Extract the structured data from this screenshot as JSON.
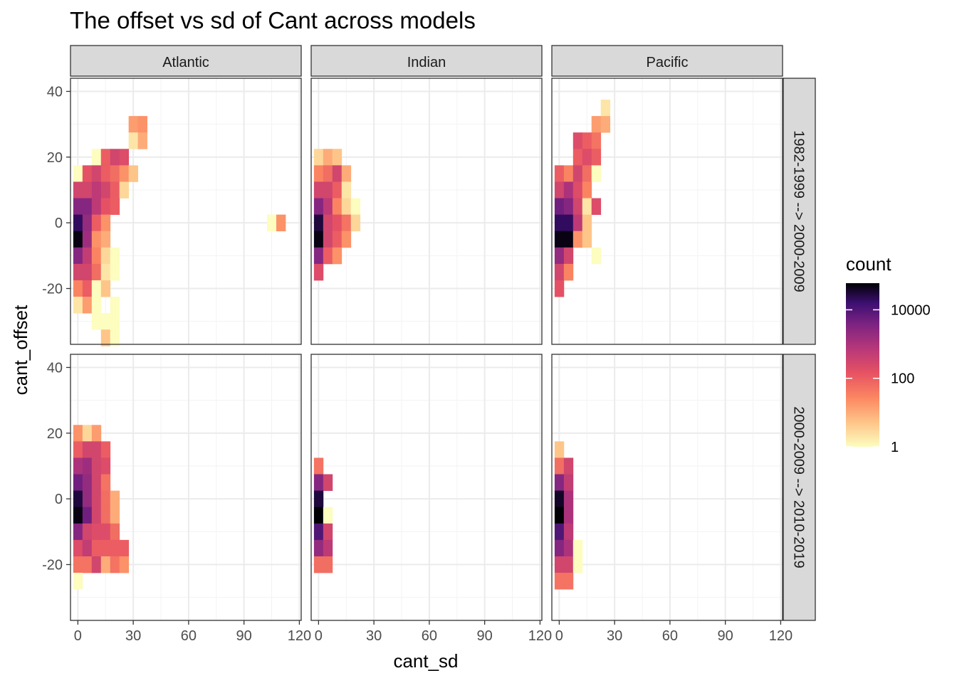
{
  "chart_data": {
    "type": "heatmap",
    "title": "The offset vs sd of Cant across models",
    "xlabel": "cant_sd",
    "ylabel": "cant_offset",
    "xlim": [
      -4,
      121
    ],
    "ylim": [
      -37,
      44
    ],
    "x_ticks": [
      0,
      30,
      60,
      90,
      120
    ],
    "y_ticks": [
      -20,
      0,
      20,
      40
    ],
    "bin_width_x": 5,
    "bin_height_y": 5,
    "grid": true,
    "legend": {
      "title": "count",
      "position": "right",
      "scale": "log10",
      "ticks": [
        1,
        100,
        10000
      ],
      "tick_labels": [
        "1",
        "100",
        "10000"
      ],
      "max": 60000
    },
    "facet_cols": [
      "Atlantic",
      "Indian",
      "Pacific"
    ],
    "facet_rows": [
      "1982-1999 --> 2000-2009",
      "2000-2009 --> 2010-2019"
    ],
    "panels": [
      {
        "basin": "Atlantic",
        "period": "1982-1999 --> 2000-2009",
        "cells": [
          [
            30,
            30,
            15
          ],
          [
            35,
            30,
            20
          ],
          [
            30,
            25,
            2
          ],
          [
            35,
            25,
            10
          ],
          [
            10,
            20,
            1
          ],
          [
            15,
            20,
            100
          ],
          [
            20,
            20,
            300
          ],
          [
            25,
            20,
            200
          ],
          [
            0,
            15,
            1
          ],
          [
            5,
            15,
            150
          ],
          [
            10,
            15,
            300
          ],
          [
            15,
            15,
            100
          ],
          [
            20,
            15,
            60
          ],
          [
            25,
            15,
            20
          ],
          [
            30,
            15,
            5
          ],
          [
            0,
            10,
            300
          ],
          [
            5,
            10,
            300
          ],
          [
            10,
            10,
            600
          ],
          [
            15,
            10,
            300
          ],
          [
            20,
            10,
            100
          ],
          [
            25,
            10,
            3
          ],
          [
            0,
            5,
            3000
          ],
          [
            5,
            5,
            3000
          ],
          [
            10,
            5,
            600
          ],
          [
            15,
            5,
            150
          ],
          [
            20,
            5,
            100
          ],
          [
            0,
            0,
            20000
          ],
          [
            5,
            0,
            2000
          ],
          [
            10,
            0,
            100
          ],
          [
            15,
            0,
            20
          ],
          [
            0,
            -5,
            50000
          ],
          [
            5,
            -5,
            1500
          ],
          [
            10,
            -5,
            20
          ],
          [
            15,
            -5,
            10
          ],
          [
            0,
            -10,
            3000
          ],
          [
            5,
            -10,
            500
          ],
          [
            10,
            -10,
            30
          ],
          [
            15,
            -10,
            3
          ],
          [
            20,
            -10,
            1
          ],
          [
            0,
            -15,
            300
          ],
          [
            5,
            -15,
            300
          ],
          [
            10,
            -15,
            60
          ],
          [
            15,
            -15,
            2
          ],
          [
            20,
            -15,
            1
          ],
          [
            0,
            -20,
            30
          ],
          [
            5,
            -20,
            100
          ],
          [
            10,
            -20,
            1
          ],
          [
            15,
            -20,
            5
          ],
          [
            0,
            -25,
            2
          ],
          [
            5,
            -25,
            15
          ],
          [
            10,
            -25,
            1
          ],
          [
            20,
            -25,
            1
          ],
          [
            10,
            -30,
            1
          ],
          [
            15,
            -30,
            1
          ],
          [
            20,
            -30,
            1
          ],
          [
            15,
            -35,
            5
          ],
          [
            20,
            -35,
            1
          ],
          [
            105,
            0,
            1
          ],
          [
            110,
            0,
            20
          ]
        ]
      },
      {
        "basin": "Indian",
        "period": "1982-1999 --> 2000-2009",
        "cells": [
          [
            0,
            20,
            3
          ],
          [
            5,
            20,
            10
          ],
          [
            10,
            20,
            5
          ],
          [
            0,
            15,
            30
          ],
          [
            5,
            15,
            60
          ],
          [
            10,
            15,
            300
          ],
          [
            15,
            15,
            10
          ],
          [
            0,
            10,
            300
          ],
          [
            5,
            10,
            300
          ],
          [
            10,
            10,
            100
          ],
          [
            15,
            10,
            2
          ],
          [
            0,
            5,
            3000
          ],
          [
            5,
            5,
            600
          ],
          [
            10,
            5,
            30
          ],
          [
            15,
            5,
            3
          ],
          [
            20,
            5,
            1
          ],
          [
            0,
            0,
            30000
          ],
          [
            5,
            0,
            300
          ],
          [
            10,
            0,
            150
          ],
          [
            15,
            0,
            50
          ],
          [
            20,
            0,
            3
          ],
          [
            0,
            -5,
            50000
          ],
          [
            5,
            -5,
            300
          ],
          [
            10,
            -5,
            100
          ],
          [
            15,
            -5,
            20
          ],
          [
            0,
            -10,
            3000
          ],
          [
            5,
            -10,
            100
          ],
          [
            10,
            -10,
            20
          ],
          [
            0,
            -15,
            200
          ]
        ]
      },
      {
        "basin": "Pacific",
        "period": "1982-1999 --> 2000-2009",
        "cells": [
          [
            25,
            35,
            2
          ],
          [
            20,
            30,
            15
          ],
          [
            25,
            30,
            10
          ],
          [
            10,
            25,
            200
          ],
          [
            15,
            25,
            100
          ],
          [
            20,
            25,
            50
          ],
          [
            10,
            20,
            100
          ],
          [
            15,
            20,
            200
          ],
          [
            20,
            20,
            100
          ],
          [
            0,
            15,
            100
          ],
          [
            5,
            15,
            30
          ],
          [
            10,
            15,
            300
          ],
          [
            15,
            15,
            60
          ],
          [
            20,
            15,
            1
          ],
          [
            0,
            10,
            300
          ],
          [
            5,
            10,
            1000
          ],
          [
            10,
            10,
            200
          ],
          [
            15,
            10,
            30
          ],
          [
            0,
            5,
            5000
          ],
          [
            5,
            5,
            3000
          ],
          [
            10,
            5,
            300
          ],
          [
            15,
            5,
            2
          ],
          [
            20,
            5,
            200
          ],
          [
            0,
            0,
            20000
          ],
          [
            5,
            0,
            20000
          ],
          [
            10,
            0,
            600
          ],
          [
            15,
            0,
            5
          ],
          [
            0,
            -5,
            50000
          ],
          [
            5,
            -5,
            50000
          ],
          [
            10,
            -5,
            20
          ],
          [
            15,
            -5,
            5
          ],
          [
            0,
            -10,
            2000
          ],
          [
            5,
            -10,
            300
          ],
          [
            20,
            -10,
            1
          ],
          [
            0,
            -15,
            300
          ],
          [
            5,
            -15,
            30
          ],
          [
            0,
            -20,
            150
          ]
        ]
      },
      {
        "basin": "Atlantic",
        "period": "2000-2009 --> 2010-2019",
        "cells": [
          [
            0,
            20,
            20
          ],
          [
            5,
            20,
            3
          ],
          [
            10,
            20,
            15
          ],
          [
            0,
            15,
            100
          ],
          [
            5,
            15,
            300
          ],
          [
            10,
            15,
            300
          ],
          [
            15,
            15,
            100
          ],
          [
            0,
            10,
            1000
          ],
          [
            5,
            10,
            1500
          ],
          [
            10,
            10,
            300
          ],
          [
            15,
            10,
            200
          ],
          [
            0,
            5,
            5000
          ],
          [
            5,
            5,
            2000
          ],
          [
            10,
            5,
            300
          ],
          [
            15,
            5,
            50
          ],
          [
            0,
            0,
            30000
          ],
          [
            5,
            0,
            2000
          ],
          [
            10,
            0,
            300
          ],
          [
            15,
            0,
            60
          ],
          [
            20,
            0,
            10
          ],
          [
            0,
            -5,
            50000
          ],
          [
            5,
            -5,
            5000
          ],
          [
            10,
            -5,
            300
          ],
          [
            15,
            -5,
            60
          ],
          [
            20,
            -5,
            10
          ],
          [
            0,
            -10,
            3000
          ],
          [
            5,
            -10,
            300
          ],
          [
            10,
            -10,
            200
          ],
          [
            15,
            -10,
            200
          ],
          [
            20,
            -10,
            60
          ],
          [
            0,
            -15,
            200
          ],
          [
            5,
            -15,
            500
          ],
          [
            10,
            -15,
            100
          ],
          [
            15,
            -15,
            100
          ],
          [
            20,
            -15,
            100
          ],
          [
            25,
            -15,
            100
          ],
          [
            0,
            -20,
            50
          ],
          [
            5,
            -20,
            50
          ],
          [
            10,
            -20,
            300
          ],
          [
            15,
            -20,
            10
          ],
          [
            20,
            -20,
            50
          ],
          [
            25,
            -20,
            20
          ],
          [
            0,
            -25,
            1
          ]
        ]
      },
      {
        "basin": "Indian",
        "period": "2000-2009 --> 2010-2019",
        "cells": [
          [
            0,
            10,
            50
          ],
          [
            0,
            5,
            3000
          ],
          [
            5,
            5,
            300
          ],
          [
            0,
            0,
            30000
          ],
          [
            0,
            -5,
            60000
          ],
          [
            5,
            -5,
            1
          ],
          [
            0,
            -10,
            10000
          ],
          [
            5,
            -10,
            300
          ],
          [
            0,
            -15,
            2000
          ],
          [
            5,
            -15,
            600
          ],
          [
            0,
            -20,
            60
          ],
          [
            5,
            -20,
            60
          ]
        ]
      },
      {
        "basin": "Pacific",
        "period": "2000-2009 --> 2010-2019",
        "cells": [
          [
            0,
            15,
            5
          ],
          [
            0,
            10,
            60
          ],
          [
            5,
            10,
            300
          ],
          [
            0,
            5,
            3000
          ],
          [
            5,
            5,
            500
          ],
          [
            0,
            0,
            40000
          ],
          [
            5,
            0,
            1000
          ],
          [
            0,
            -5,
            60000
          ],
          [
            5,
            -5,
            1000
          ],
          [
            0,
            -10,
            10000
          ],
          [
            5,
            -10,
            600
          ],
          [
            0,
            -15,
            3000
          ],
          [
            5,
            -15,
            1000
          ],
          [
            10,
            -15,
            1
          ],
          [
            0,
            -20,
            300
          ],
          [
            5,
            -20,
            300
          ],
          [
            10,
            -20,
            1
          ],
          [
            0,
            -25,
            50
          ],
          [
            5,
            -25,
            50
          ]
        ]
      }
    ]
  }
}
